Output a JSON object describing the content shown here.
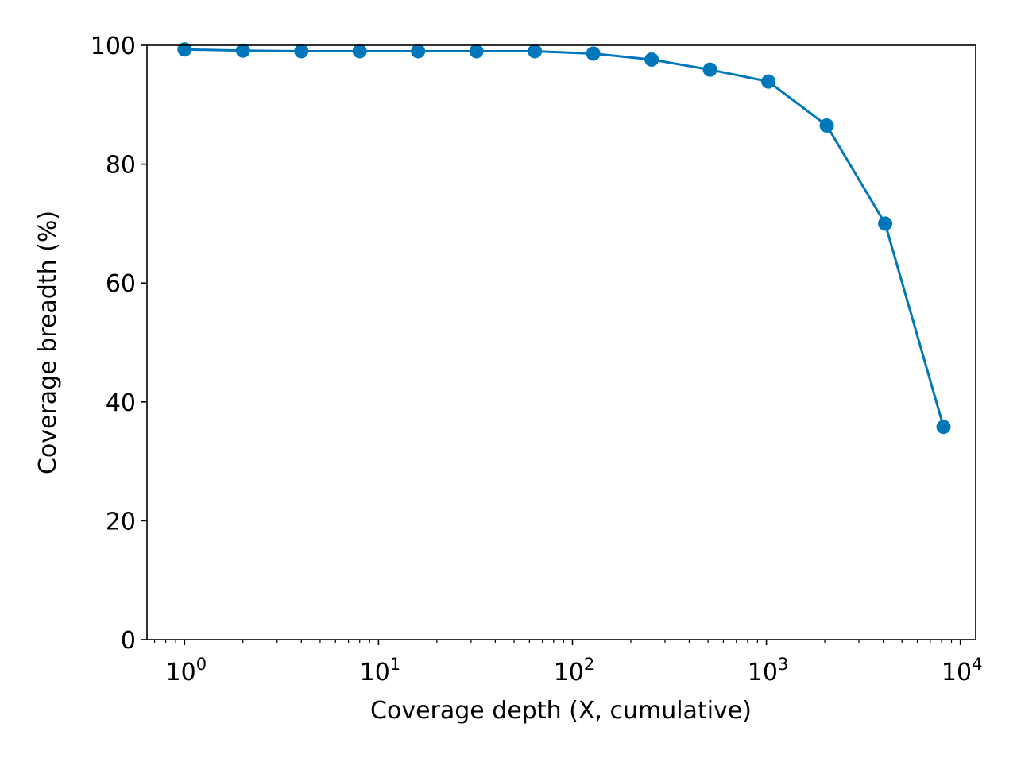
{
  "chart_data": {
    "type": "line",
    "title": "",
    "xlabel": "Coverage depth (X, cumulative)",
    "ylabel": "Coverage breadth (%)",
    "x_scale": "log",
    "xlim": [
      0.64,
      12000
    ],
    "ylim": [
      0,
      100
    ],
    "grid": false,
    "legend": "none",
    "x_ticks": [
      {
        "base": "10",
        "exp": "0",
        "value": 1
      },
      {
        "base": "10",
        "exp": "1",
        "value": 10
      },
      {
        "base": "10",
        "exp": "2",
        "value": 100
      },
      {
        "base": "10",
        "exp": "3",
        "value": 1000
      },
      {
        "base": "10",
        "exp": "4",
        "value": 10000
      }
    ],
    "y_ticks": [
      "0",
      "20",
      "40",
      "60",
      "80",
      "100"
    ],
    "series": [
      {
        "color": "#0077bb",
        "marker": "circle",
        "x": [
          1,
          2,
          4,
          8,
          16,
          32,
          64,
          128,
          256,
          512,
          1024,
          2048,
          4096,
          8192
        ],
        "y": [
          99.3,
          99.1,
          99.0,
          99.0,
          99.0,
          99.0,
          99.0,
          98.6,
          97.6,
          95.9,
          93.9,
          86.5,
          70.0,
          35.8
        ]
      }
    ]
  }
}
